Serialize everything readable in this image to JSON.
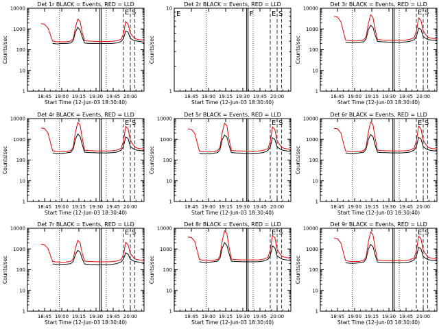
{
  "colors": {
    "events": "#000000",
    "lld": "#e00000",
    "axes": "#000000"
  },
  "chart_data": {
    "type": "line",
    "xlabel": "Start Time (12-Jun-03 18:30:40)",
    "ylabel": "Counts/sec",
    "y_scale": "log",
    "ylim": [
      1,
      10000
    ],
    "y_ticks": [
      1,
      10,
      100,
      1000,
      10000
    ],
    "y_tick_labels": [
      "1",
      "10",
      "100",
      "1000",
      "10000"
    ],
    "x_ticks": [
      "18:45",
      "19:00",
      "19:15",
      "19:30",
      "19:45",
      "20:00"
    ],
    "time_base": "18:30",
    "time_span_min": 102,
    "time_points_min": [
      12,
      15,
      18,
      22,
      26,
      30,
      34,
      38,
      40,
      42,
      44,
      46,
      48,
      50,
      54,
      58,
      62,
      66,
      70,
      74,
      78,
      82,
      84,
      86,
      88,
      90,
      92,
      94,
      96,
      98,
      100,
      102
    ],
    "panels": [
      {
        "title": "Det 1r BLACK = Events, RED = LLD",
        "has_data": true,
        "markers": [
          "E",
          "S"
        ],
        "lines": {
          "dotted": [
            28,
            69
          ],
          "solid": [
            64
          ],
          "dashed": [
            84,
            90,
            94
          ]
        },
        "series": [
          {
            "name": "BLACK",
            "values": [
              null,
              null,
              null,
              200,
              190,
              200,
              200,
              210,
              270,
              700,
              1200,
              900,
              400,
              210,
              200,
              200,
              200,
              200,
              200,
              200,
              210,
              250,
              340,
              800,
              700,
              350,
              300,
              270,
              260,
              250,
              240,
              230
            ]
          },
          {
            "name": "RED",
            "values": [
              1800,
              1700,
              1100,
              260,
              240,
              240,
              240,
              260,
              330,
              1200,
              3000,
              2300,
              650,
              270,
              260,
              255,
              250,
              250,
              250,
              255,
              270,
              320,
              580,
              2300,
              1700,
              620,
              450,
              340,
              320,
              300,
              300,
              290
            ]
          }
        ]
      },
      {
        "title": "Det 2r BLACK = Events, RED = LLD",
        "has_data": false,
        "ylim": [
          1,
          10
        ],
        "y_ticks": [
          1,
          10
        ],
        "y_tick_labels": [
          "1",
          "10"
        ],
        "markers": [
          "E",
          "F",
          "E",
          "S"
        ],
        "lines": {
          "dotted": [
            28,
            69
          ],
          "solid": [
            64
          ],
          "dashed": [
            84,
            90,
            94
          ]
        },
        "series": []
      },
      {
        "title": "Det 3r BLACK = Events, RED = LLD",
        "has_data": true,
        "markers": [
          "E",
          "S"
        ],
        "lines": {
          "dotted": [
            28,
            69
          ],
          "solid": [
            64
          ],
          "dashed": [
            84,
            90,
            94
          ]
        },
        "series": [
          {
            "name": "BLACK",
            "values": [
              null,
              null,
              null,
              230,
              220,
              220,
              230,
              240,
              330,
              900,
              1500,
              1200,
              500,
              250,
              240,
              235,
              230,
              230,
              230,
              235,
              250,
              300,
              420,
              1100,
              950,
              420,
              360,
              310,
              300,
              290,
              280,
              270
            ]
          },
          {
            "name": "RED",
            "values": [
              4000,
              3800,
              2200,
              300,
              270,
              265,
              270,
              300,
              420,
              1800,
              4800,
              3600,
              900,
              310,
              295,
              290,
              285,
              285,
              285,
              290,
              310,
              380,
              750,
              3400,
              2600,
              800,
              560,
              400,
              370,
              350,
              340,
              330
            ]
          }
        ]
      },
      {
        "title": "Det 4r BLACK = Events, RED = LLD",
        "has_data": true,
        "markers": [
          "E",
          "S"
        ],
        "lines": {
          "dotted": [
            28,
            69
          ],
          "solid": [
            64
          ],
          "dashed": [
            84,
            90,
            94
          ]
        },
        "series": [
          {
            "name": "BLACK",
            "values": [
              null,
              null,
              null,
              220,
              210,
              210,
              220,
              240,
              340,
              1000,
              1800,
              1400,
              550,
              240,
              230,
              225,
              220,
              220,
              220,
              225,
              240,
              300,
              450,
              1300,
              1100,
              450,
              370,
              320,
              300,
              290,
              280,
              270
            ]
          },
          {
            "name": "RED",
            "values": [
              3500,
              3300,
              2000,
              280,
              255,
              250,
              255,
              290,
              420,
              2200,
              6500,
              5000,
              1100,
              300,
              285,
              280,
              275,
              275,
              275,
              280,
              300,
              370,
              800,
              4200,
              3200,
              900,
              600,
              420,
              380,
              360,
              350,
              340
            ]
          }
        ]
      },
      {
        "title": "Det 5r BLACK = Events, RED = LLD",
        "has_data": true,
        "markers": [
          "E",
          "S"
        ],
        "lines": {
          "dotted": [
            28,
            69
          ],
          "solid": [
            64
          ],
          "dashed": [
            84,
            90,
            94
          ]
        },
        "series": [
          {
            "name": "BLACK",
            "values": [
              null,
              null,
              null,
              210,
              200,
              200,
              210,
              230,
              320,
              950,
              1600,
              1300,
              500,
              230,
              220,
              215,
              210,
              210,
              210,
              215,
              230,
              290,
              430,
              1200,
              1000,
              430,
              360,
              310,
              290,
              280,
              270,
              260
            ]
          },
          {
            "name": "RED",
            "values": [
              3200,
              3000,
              1900,
              270,
              250,
              245,
              250,
              285,
              410,
              2100,
              6000,
              4600,
              1000,
              290,
              280,
              275,
              270,
              270,
              270,
              275,
              295,
              360,
              780,
              4000,
              3000,
              870,
              580,
              410,
              370,
              350,
              340,
              330
            ]
          }
        ]
      },
      {
        "title": "Det 6r BLACK = Events, RED = LLD",
        "has_data": true,
        "markers": [
          "E",
          "S"
        ],
        "lines": {
          "dotted": [
            28,
            69
          ],
          "solid": [
            64
          ],
          "dashed": [
            84,
            90,
            94
          ]
        },
        "series": [
          {
            "name": "BLACK",
            "values": [
              null,
              null,
              null,
              220,
              210,
              210,
              220,
              240,
              340,
              980,
              1700,
              1350,
              520,
              240,
              230,
              225,
              220,
              220,
              220,
              225,
              240,
              300,
              440,
              1250,
              1050,
              440,
              365,
              315,
              295,
              285,
              275,
              265
            ]
          },
          {
            "name": "RED",
            "values": [
              3400,
              3200,
              2000,
              280,
              255,
              250,
              255,
              290,
              420,
              2200,
              6800,
              5200,
              1100,
              300,
              285,
              280,
              275,
              275,
              275,
              280,
              300,
              370,
              820,
              4300,
              3300,
              900,
              600,
              420,
              380,
              360,
              350,
              340
            ]
          }
        ]
      },
      {
        "title": "Det 7r BLACK = Events, RED = LLD",
        "has_data": true,
        "markers": [
          "E",
          "S"
        ],
        "lines": {
          "dotted": [
            28,
            69
          ],
          "solid": [
            64
          ],
          "dashed": [
            84,
            90,
            94
          ]
        },
        "series": [
          {
            "name": "BLACK",
            "values": [
              null,
              null,
              null,
              190,
              180,
              180,
              185,
              195,
              250,
              550,
              850,
              700,
              330,
              190,
              180,
              178,
              175,
              175,
              175,
              180,
              195,
              240,
              330,
              650,
              560,
              320,
              280,
              250,
              240,
              230,
              225,
              220
            ]
          },
          {
            "name": "RED",
            "values": [
              1700,
              1600,
              1050,
              250,
              235,
              230,
              235,
              255,
              330,
              1100,
              2600,
              2000,
              600,
              260,
              250,
              245,
              240,
              240,
              240,
              245,
              260,
              310,
              560,
              2100,
              1600,
              600,
              440,
              330,
              310,
              295,
              290,
              280
            ]
          }
        ]
      },
      {
        "title": "Det 8r BLACK = Events, RED = LLD",
        "has_data": true,
        "markers": [
          "E",
          "S"
        ],
        "lines": {
          "dotted": [
            28,
            69
          ],
          "solid": [
            64
          ],
          "dashed": [
            84,
            90,
            94
          ]
        },
        "series": [
          {
            "name": "BLACK",
            "values": [
              null,
              null,
              null,
              240,
              230,
              230,
              240,
              260,
              360,
              1100,
              2000,
              1500,
              600,
              260,
              250,
              245,
              240,
              240,
              240,
              245,
              260,
              320,
              470,
              1400,
              1150,
              470,
              390,
              330,
              310,
              300,
              290,
              280
            ]
          },
          {
            "name": "RED",
            "values": [
              3800,
              3600,
              2300,
              310,
              280,
              275,
              280,
              315,
              450,
              2500,
              7500,
              5600,
              1200,
              320,
              305,
              300,
              295,
              295,
              295,
              300,
              320,
              400,
              880,
              4600,
              3500,
              960,
              640,
              450,
              410,
              385,
              375,
              360
            ]
          }
        ]
      },
      {
        "title": "Det 9r BLACK = Events, RED = LLD",
        "has_data": true,
        "markers": [
          "E",
          "S"
        ],
        "lines": {
          "dotted": [
            28,
            69
          ],
          "solid": [
            64
          ],
          "dashed": [
            84,
            90,
            94
          ]
        },
        "series": [
          {
            "name": "BLACK",
            "values": [
              null,
              null,
              null,
              215,
              205,
              205,
              215,
              235,
              330,
              960,
              1650,
              1320,
              510,
              235,
              225,
              220,
              215,
              215,
              215,
              220,
              235,
              295,
              435,
              1220,
              1020,
              435,
              362,
              312,
              292,
              282,
              272,
              262
            ]
          },
          {
            "name": "RED",
            "values": [
              3300,
              3100,
              1950,
              275,
              252,
              248,
              252,
              288,
              415,
              2150,
              6600,
              5000,
              1050,
              295,
              282,
              278,
              272,
              272,
              272,
              278,
              298,
              365,
              800,
              4150,
              3150,
              880,
              590,
              415,
              375,
              355,
              345,
              335
            ]
          }
        ]
      }
    ]
  }
}
